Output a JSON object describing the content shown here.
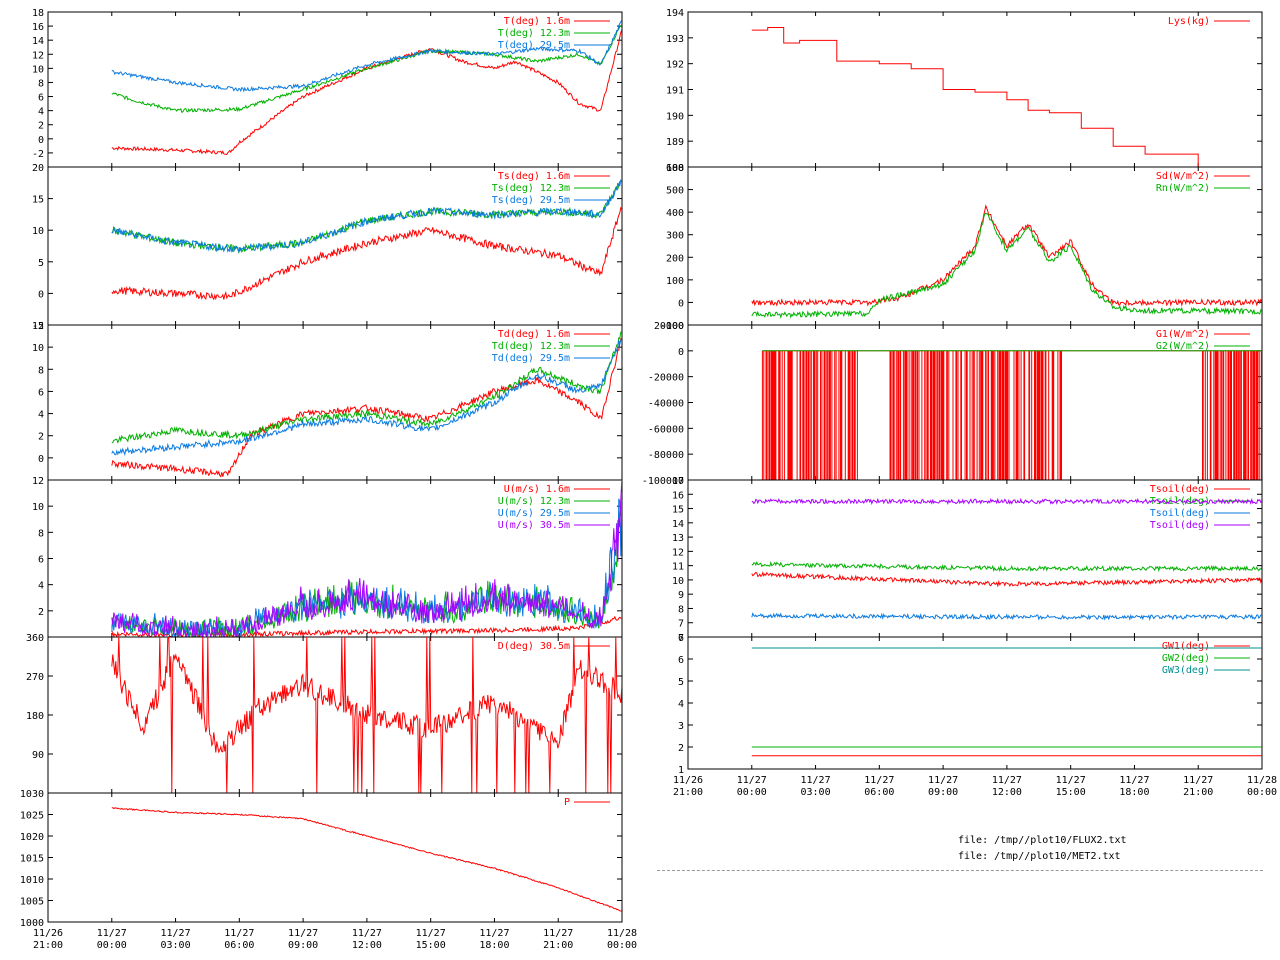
{
  "files": [
    "file: /tmp//plot10/FLUX2.txt",
    "file: /tmp//plot10/MET2.txt"
  ],
  "colors": {
    "red": "#ff0000",
    "green": "#00b000",
    "blue": "#0a7ae0",
    "purple": "#a800ff",
    "teal": "#009090"
  },
  "chart_data": [
    {
      "id": "L1",
      "type": "line",
      "xlim": [
        "11/26 21:00",
        "11/28 00:00"
      ],
      "ylim": [
        -4,
        18
      ],
      "yticks": [
        -2,
        0,
        2,
        4,
        6,
        8,
        10,
        12,
        14,
        16,
        18
      ],
      "series": [
        {
          "name": "T(deg)  1.6m",
          "color": "red",
          "x": [
            "11/27 00:00",
            "11/27 03:00",
            "11/27 05:30",
            "11/27 06:00",
            "11/27 09:00",
            "11/27 12:00",
            "11/27 15:00",
            "11/27 16:30",
            "11/27 18:00",
            "11/27 19:00",
            "11/27 20:00",
            "11/27 21:00",
            "11/27 22:00",
            "11/27 23:00",
            "11/28 00:00"
          ],
          "y": [
            -1.3,
            -1.6,
            -2,
            -0.5,
            6,
            10,
            12.8,
            11,
            10,
            11,
            9.5,
            8,
            5,
            4,
            15.5
          ]
        },
        {
          "name": "T(deg) 12.3m",
          "color": "green",
          "x": [
            "11/27 00:00",
            "11/27 01:00",
            "11/27 03:00",
            "11/27 06:00",
            "11/27 09:00",
            "11/27 12:00",
            "11/27 15:00",
            "11/27 18:00",
            "11/27 20:00",
            "11/27 22:00",
            "11/27 23:00",
            "11/28 00:00"
          ],
          "y": [
            6.5,
            5.5,
            4,
            4.2,
            7,
            10,
            12.5,
            12,
            11,
            12,
            10.5,
            16.5
          ]
        },
        {
          "name": "T(deg) 29.5m",
          "color": "blue",
          "x": [
            "11/27 00:00",
            "11/27 01:00",
            "11/27 03:00",
            "11/27 06:00",
            "11/27 09:00",
            "11/27 12:00",
            "11/27 15:00",
            "11/27 18:00",
            "11/27 20:00",
            "11/27 22:00",
            "11/27 23:00",
            "11/28 00:00"
          ],
          "y": [
            9.5,
            9,
            8,
            7,
            7.5,
            10.5,
            12.5,
            12,
            12.8,
            12.5,
            10.5,
            16.8
          ]
        }
      ]
    },
    {
      "id": "L2",
      "type": "line",
      "xlim": [
        "11/26 21:00",
        "11/28 00:00"
      ],
      "ylim": [
        -5,
        20
      ],
      "yticks": [
        -5,
        0,
        5,
        10,
        15,
        20
      ],
      "series": [
        {
          "name": "Ts(deg)  1.6m",
          "color": "red",
          "x": [
            "11/27 00:00",
            "11/27 03:00",
            "11/27 05:30",
            "11/27 09:00",
            "11/27 12:00",
            "11/27 15:00",
            "11/27 18:00",
            "11/27 21:00",
            "11/27 23:00",
            "11/28 00:00"
          ],
          "y": [
            0.5,
            0,
            -0.5,
            5,
            8,
            10,
            7.5,
            6,
            3,
            14
          ]
        },
        {
          "name": "Ts(deg) 12.3m",
          "color": "green",
          "x": [
            "11/27 00:00",
            "11/27 03:00",
            "11/27 06:00",
            "11/27 09:00",
            "11/27 12:00",
            "11/27 15:00",
            "11/27 18:00",
            "11/27 21:00",
            "11/27 23:00",
            "11/28 00:00"
          ],
          "y": [
            10,
            8,
            7,
            8,
            11.5,
            13,
            12.5,
            13,
            12.5,
            18
          ]
        },
        {
          "name": "Ts(deg) 29.5m",
          "color": "blue",
          "x": [
            "11/27 00:00",
            "11/27 03:00",
            "11/27 06:00",
            "11/27 09:00",
            "11/27 12:00",
            "11/27 15:00",
            "11/27 18:00",
            "11/27 21:00",
            "11/27 23:00",
            "11/28 00:00"
          ],
          "y": [
            10,
            8,
            7,
            8,
            11.5,
            13,
            12.5,
            13,
            12.5,
            18
          ]
        }
      ]
    },
    {
      "id": "L3",
      "type": "line",
      "xlim": [
        "11/26 21:00",
        "11/28 00:00"
      ],
      "ylim": [
        -2,
        12
      ],
      "yticks": [
        0,
        2,
        4,
        6,
        8,
        10,
        12
      ],
      "series": [
        {
          "name": "Td(deg)  1.6m",
          "color": "red",
          "x": [
            "11/27 00:00",
            "11/27 03:00",
            "11/27 05:30",
            "11/27 06:30",
            "11/27 09:00",
            "11/27 12:00",
            "11/27 15:00",
            "11/27 18:00",
            "11/27 20:00",
            "11/27 22:00",
            "11/27 23:00",
            "11/28 00:00"
          ],
          "y": [
            -0.5,
            -1,
            -1.5,
            2,
            4,
            4.5,
            3.5,
            6,
            7,
            5,
            3.5,
            11
          ]
        },
        {
          "name": "Td(deg) 12.3m",
          "color": "green",
          "x": [
            "11/27 00:00",
            "11/27 03:00",
            "11/27 06:00",
            "11/27 09:00",
            "11/27 12:00",
            "11/27 15:00",
            "11/27 18:00",
            "11/27 20:00",
            "11/27 22:00",
            "11/27 23:00",
            "11/28 00:00"
          ],
          "y": [
            1.5,
            2.5,
            2,
            3.5,
            4,
            3,
            5.5,
            8,
            6.5,
            6,
            11.5
          ]
        },
        {
          "name": "Td(deg) 29.5m",
          "color": "blue",
          "x": [
            "11/27 00:00",
            "11/27 03:00",
            "11/27 06:00",
            "11/27 09:00",
            "11/27 12:00",
            "11/27 15:00",
            "11/27 18:00",
            "11/27 20:00",
            "11/27 22:00",
            "11/27 23:00",
            "11/28 00:00"
          ],
          "y": [
            0.5,
            1,
            1.5,
            3,
            3.5,
            2.5,
            5,
            7.5,
            6,
            6.5,
            11
          ]
        }
      ]
    },
    {
      "id": "L4",
      "type": "line",
      "xlim": [
        "11/26 21:00",
        "11/28 00:00"
      ],
      "ylim": [
        0,
        12
      ],
      "yticks": [
        2,
        4,
        6,
        8,
        10,
        12
      ],
      "series": [
        {
          "name": "U(m/s)  1.6m",
          "color": "red",
          "x": [
            "11/27 00:00",
            "11/27 06:00",
            "11/27 12:00",
            "11/27 18:00",
            "11/27 22:00",
            "11/28 00:00"
          ],
          "y": [
            0.2,
            0.2,
            0.4,
            0.5,
            0.7,
            1.5
          ]
        },
        {
          "name": "U(m/s) 12.3m",
          "color": "green",
          "x": [
            "11/27 00:00",
            "11/27 03:00",
            "11/27 06:00",
            "11/27 09:00",
            "11/27 12:00",
            "11/27 15:00",
            "11/27 18:00",
            "11/27 21:00",
            "11/27 23:00",
            "11/28 00:00"
          ],
          "y": [
            1,
            0.5,
            0.5,
            2,
            2.5,
            1.5,
            2.5,
            2,
            1,
            8
          ]
        },
        {
          "name": "U(m/s) 29.5m",
          "color": "blue",
          "x": [
            "11/27 00:00",
            "11/27 03:00",
            "11/27 06:00",
            "11/27 09:00",
            "11/27 12:00",
            "11/27 15:00",
            "11/27 18:00",
            "11/27 21:00",
            "11/27 23:00",
            "11/28 00:00"
          ],
          "y": [
            1,
            0.5,
            0.5,
            2,
            2.5,
            1.5,
            2.5,
            2,
            1,
            8
          ]
        },
        {
          "name": "U(m/s) 30.5m",
          "color": "purple",
          "x": [
            "11/27 00:00",
            "11/27 03:00",
            "11/27 06:00",
            "11/27 09:00",
            "11/27 12:00",
            "11/27 15:00",
            "11/27 18:00",
            "11/27 21:00",
            "11/27 23:00",
            "11/28 00:00"
          ],
          "y": [
            1,
            0.5,
            0.5,
            2,
            2.5,
            1.5,
            2.5,
            2,
            1,
            8
          ]
        }
      ]
    },
    {
      "id": "L5",
      "type": "line",
      "xlim": [
        "11/26 21:00",
        "11/28 00:00"
      ],
      "ylim": [
        0,
        360
      ],
      "yticks": [
        90,
        180,
        270,
        360
      ],
      "series": [
        {
          "name": "D(deg) 30.5m",
          "color": "red",
          "x": [
            "11/27 00:00",
            "11/27 01:30",
            "11/27 03:00",
            "11/27 05:00",
            "11/27 07:00",
            "11/27 09:00",
            "11/27 12:00",
            "11/27 15:00",
            "11/27 18:00",
            "11/27 21:00",
            "11/27 22:00",
            "11/28 00:00"
          ],
          "y": [
            300,
            150,
            320,
            100,
            200,
            250,
            180,
            150,
            210,
            120,
            290,
            230
          ]
        }
      ]
    },
    {
      "id": "L6",
      "type": "line",
      "xlim": [
        "11/26 21:00",
        "11/28 00:00"
      ],
      "ylim": [
        1000,
        1030
      ],
      "yticks": [
        1000,
        1005,
        1010,
        1015,
        1020,
        1025,
        1030
      ],
      "xticks": [
        "11/26\n21:00",
        "11/27\n00:00",
        "11/27\n03:00",
        "11/27\n06:00",
        "11/27\n09:00",
        "11/27\n12:00",
        "11/27\n15:00",
        "11/27\n18:00",
        "11/27\n21:00",
        "11/28\n00:00"
      ],
      "series": [
        {
          "name": "P",
          "color": "red",
          "x": [
            "11/27 00:00",
            "11/27 03:00",
            "11/27 06:00",
            "11/27 09:00",
            "11/27 12:00",
            "11/27 15:00",
            "11/27 18:00",
            "11/27 21:00",
            "11/28 00:00"
          ],
          "y": [
            1026.5,
            1025.5,
            1025,
            1024,
            1020,
            1016,
            1012.5,
            1008,
            1002.5
          ]
        }
      ]
    },
    {
      "id": "R1",
      "type": "line",
      "xlim": [
        "11/26 21:00",
        "11/28 00:00"
      ],
      "ylim": [
        188,
        194
      ],
      "yticks": [
        188,
        189,
        190,
        191,
        192,
        193,
        194
      ],
      "series": [
        {
          "name": "Lys(kg)",
          "color": "red",
          "step": true,
          "x": [
            "11/27 00:00",
            "11/27 00:45",
            "11/27 01:30",
            "11/27 02:15",
            "11/27 04:00",
            "11/27 06:00",
            "11/27 07:30",
            "11/27 09:00",
            "11/27 10:30",
            "11/27 12:00",
            "11/27 13:00",
            "11/27 14:00",
            "11/27 15:30",
            "11/27 17:00",
            "11/27 18:30",
            "11/27 20:00",
            "11/27 21:00",
            "11/28 00:00"
          ],
          "y": [
            193.3,
            193.4,
            192.8,
            192.9,
            192.1,
            192.0,
            191.8,
            191.0,
            190.9,
            190.6,
            190.2,
            190.1,
            189.5,
            188.8,
            188.5,
            188.5,
            188.0,
            188.0
          ]
        }
      ]
    },
    {
      "id": "R2",
      "type": "line",
      "xlim": [
        "11/26 21:00",
        "11/28 00:00"
      ],
      "ylim": [
        -100,
        600
      ],
      "yticks": [
        -100,
        0,
        100,
        200,
        300,
        400,
        500,
        600
      ],
      "series": [
        {
          "name": "Sd(W/m^2)",
          "color": "red",
          "x": [
            "11/27 00:00",
            "11/27 05:30",
            "11/27 07:00",
            "11/27 09:00",
            "11/27 10:30",
            "11/27 11:00",
            "11/27 12:00",
            "11/27 13:00",
            "11/27 14:00",
            "11/27 15:00",
            "11/27 16:00",
            "11/27 17:00",
            "11/28 00:00"
          ],
          "y": [
            0,
            0,
            20,
            100,
            250,
            420,
            250,
            350,
            200,
            270,
            80,
            0,
            0
          ]
        },
        {
          "name": "Rn(W/m^2)",
          "color": "green",
          "x": [
            "11/27 00:00",
            "11/27 05:30",
            "11/27 06:00",
            "11/27 09:00",
            "11/27 10:30",
            "11/27 11:00",
            "11/27 12:00",
            "11/27 13:00",
            "11/27 14:00",
            "11/27 15:00",
            "11/27 16:00",
            "11/27 17:00",
            "11/27 18:00",
            "11/28 00:00"
          ],
          "y": [
            -55,
            -50,
            10,
            80,
            230,
            400,
            230,
            330,
            180,
            250,
            60,
            -20,
            -35,
            -40
          ]
        }
      ]
    },
    {
      "id": "R3",
      "type": "line",
      "xlim": [
        "11/26 21:00",
        "11/28 00:00"
      ],
      "ylim": [
        -100000,
        20000
      ],
      "yticks": [
        -100000,
        -80000,
        -60000,
        -40000,
        -20000,
        0,
        20000
      ],
      "series": [
        {
          "name": "G1(W/m^2)",
          "color": "red",
          "spikes": true,
          "x": [
            "11/27 00:30",
            "11/28 00:00"
          ],
          "y": [
            0,
            -100000
          ]
        },
        {
          "name": "G2(W/m^2)",
          "color": "green",
          "x": [
            "11/27 00:30",
            "11/28 00:00"
          ],
          "y": [
            0,
            0
          ]
        }
      ]
    },
    {
      "id": "R4",
      "type": "line",
      "xlim": [
        "11/26 21:00",
        "11/28 00:00"
      ],
      "ylim": [
        6,
        17
      ],
      "yticks": [
        6,
        7,
        8,
        9,
        10,
        11,
        12,
        13,
        14,
        15,
        16,
        17
      ],
      "series": [
        {
          "name": "Tsoil(deg)",
          "color": "red",
          "x": [
            "11/27 00:00",
            "11/27 12:00",
            "11/28 00:00"
          ],
          "y": [
            10.4,
            9.7,
            10
          ]
        },
        {
          "name": "Tsoil(deg)",
          "color": "green",
          "x": [
            "11/27 00:00",
            "11/27 12:00",
            "11/28 00:00"
          ],
          "y": [
            11.1,
            10.8,
            10.8
          ]
        },
        {
          "name": "Tsoil(deg)",
          "color": "blue",
          "x": [
            "11/27 00:00",
            "11/27 12:00",
            "11/28 00:00"
          ],
          "y": [
            7.5,
            7.4,
            7.4
          ]
        },
        {
          "name": "Tsoil(deg)",
          "color": "purple",
          "x": [
            "11/27 00:00",
            "11/27 12:00",
            "11/28 00:00"
          ],
          "y": [
            15.5,
            15.5,
            15.5
          ]
        }
      ]
    },
    {
      "id": "R5",
      "type": "line",
      "xlim": [
        "11/26 21:00",
        "11/28 00:00"
      ],
      "ylim": [
        1,
        7
      ],
      "yticks": [
        1,
        2,
        3,
        4,
        5,
        6,
        7
      ],
      "xticks": [
        "11/26\n21:00",
        "11/27\n00:00",
        "11/27\n03:00",
        "11/27\n06:00",
        "11/27\n09:00",
        "11/27\n12:00",
        "11/27\n15:00",
        "11/27\n18:00",
        "11/27\n21:00",
        "11/28\n00:00"
      ],
      "series": [
        {
          "name": "GW1(deg)",
          "color": "red",
          "x": [
            "11/27 00:00",
            "11/28 00:00"
          ],
          "y": [
            1.6,
            1.6
          ]
        },
        {
          "name": "GW2(deg)",
          "color": "green",
          "x": [
            "11/27 00:00",
            "11/28 00:00"
          ],
          "y": [
            2.0,
            2.0
          ]
        },
        {
          "name": "GW3(deg)",
          "color": "teal",
          "x": [
            "11/27 00:00",
            "11/28 00:00"
          ],
          "y": [
            6.5,
            6.5
          ]
        }
      ]
    }
  ]
}
